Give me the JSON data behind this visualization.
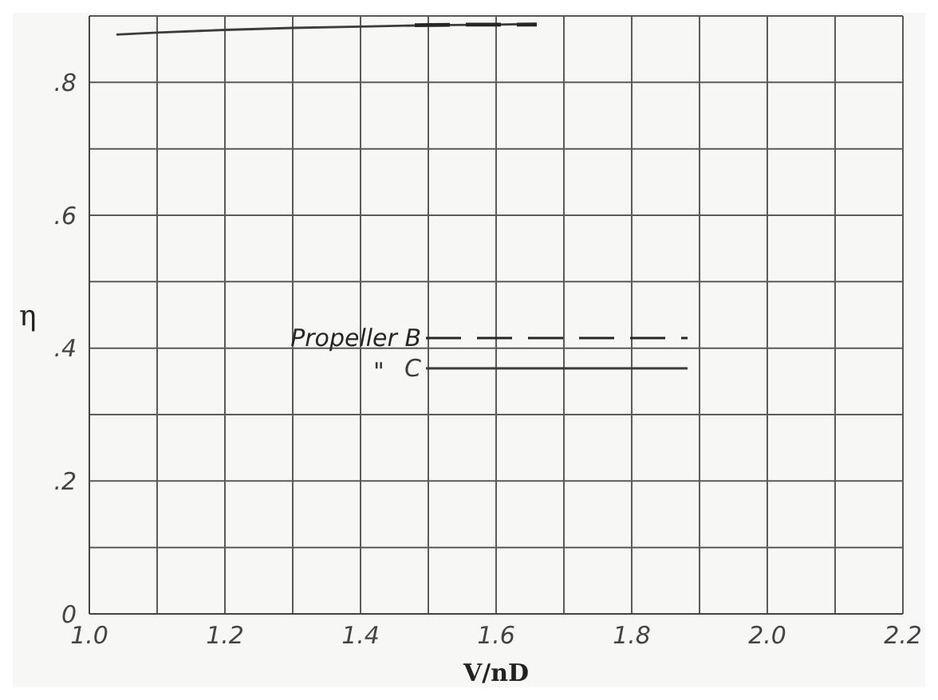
{
  "chart_data": {
    "type": "line",
    "xlabel": "V/nD",
    "ylabel": "η",
    "xlim": [
      1.0,
      2.2
    ],
    "ylim": [
      0,
      0.9
    ],
    "xticks": [
      {
        "value": 1.0,
        "label": "1.0"
      },
      {
        "value": 1.1,
        "label": null
      },
      1.2,
      {
        "value": 1.3,
        "label": null
      },
      1.4,
      {
        "value": 1.5,
        "label": null
      },
      1.6,
      {
        "value": 1.7,
        "label": null
      },
      1.8,
      {
        "value": 1.9,
        "label": null
      },
      {
        "value": 2.0,
        "label": "2.0"
      },
      {
        "value": 2.1,
        "label": null
      },
      2.2
    ],
    "yticks": [
      0,
      {
        "value": 0.1,
        "label": null
      },
      {
        "value": 0.2,
        "label": ".2"
      },
      {
        "value": 0.3,
        "label": null
      },
      {
        "value": 0.4,
        "label": ".4"
      },
      {
        "value": 0.5,
        "label": null
      },
      {
        "value": 0.6,
        "label": ".6"
      },
      {
        "value": 0.7,
        "label": null
      },
      {
        "value": 0.8,
        "label": ".8"
      }
    ],
    "grid": true,
    "legend": "center",
    "annotations": [
      "\""
    ],
    "series": [
      {
        "name": "Propeller B",
        "color": "#262626",
        "line_style": "dashed",
        "x": [
          1.48,
          1.56,
          1.66
        ],
        "values": [
          0.886,
          0.887,
          0.887
        ]
      },
      {
        "name": "C",
        "color": "#3c3c3c",
        "line_style": "solid",
        "x": [
          1.04,
          1.1,
          1.2,
          1.3,
          1.4,
          1.5,
          1.6,
          1.66
        ],
        "values": [
          0.872,
          0.875,
          0.879,
          0.882,
          0.884,
          0.886,
          0.887,
          0.888
        ]
      }
    ]
  }
}
